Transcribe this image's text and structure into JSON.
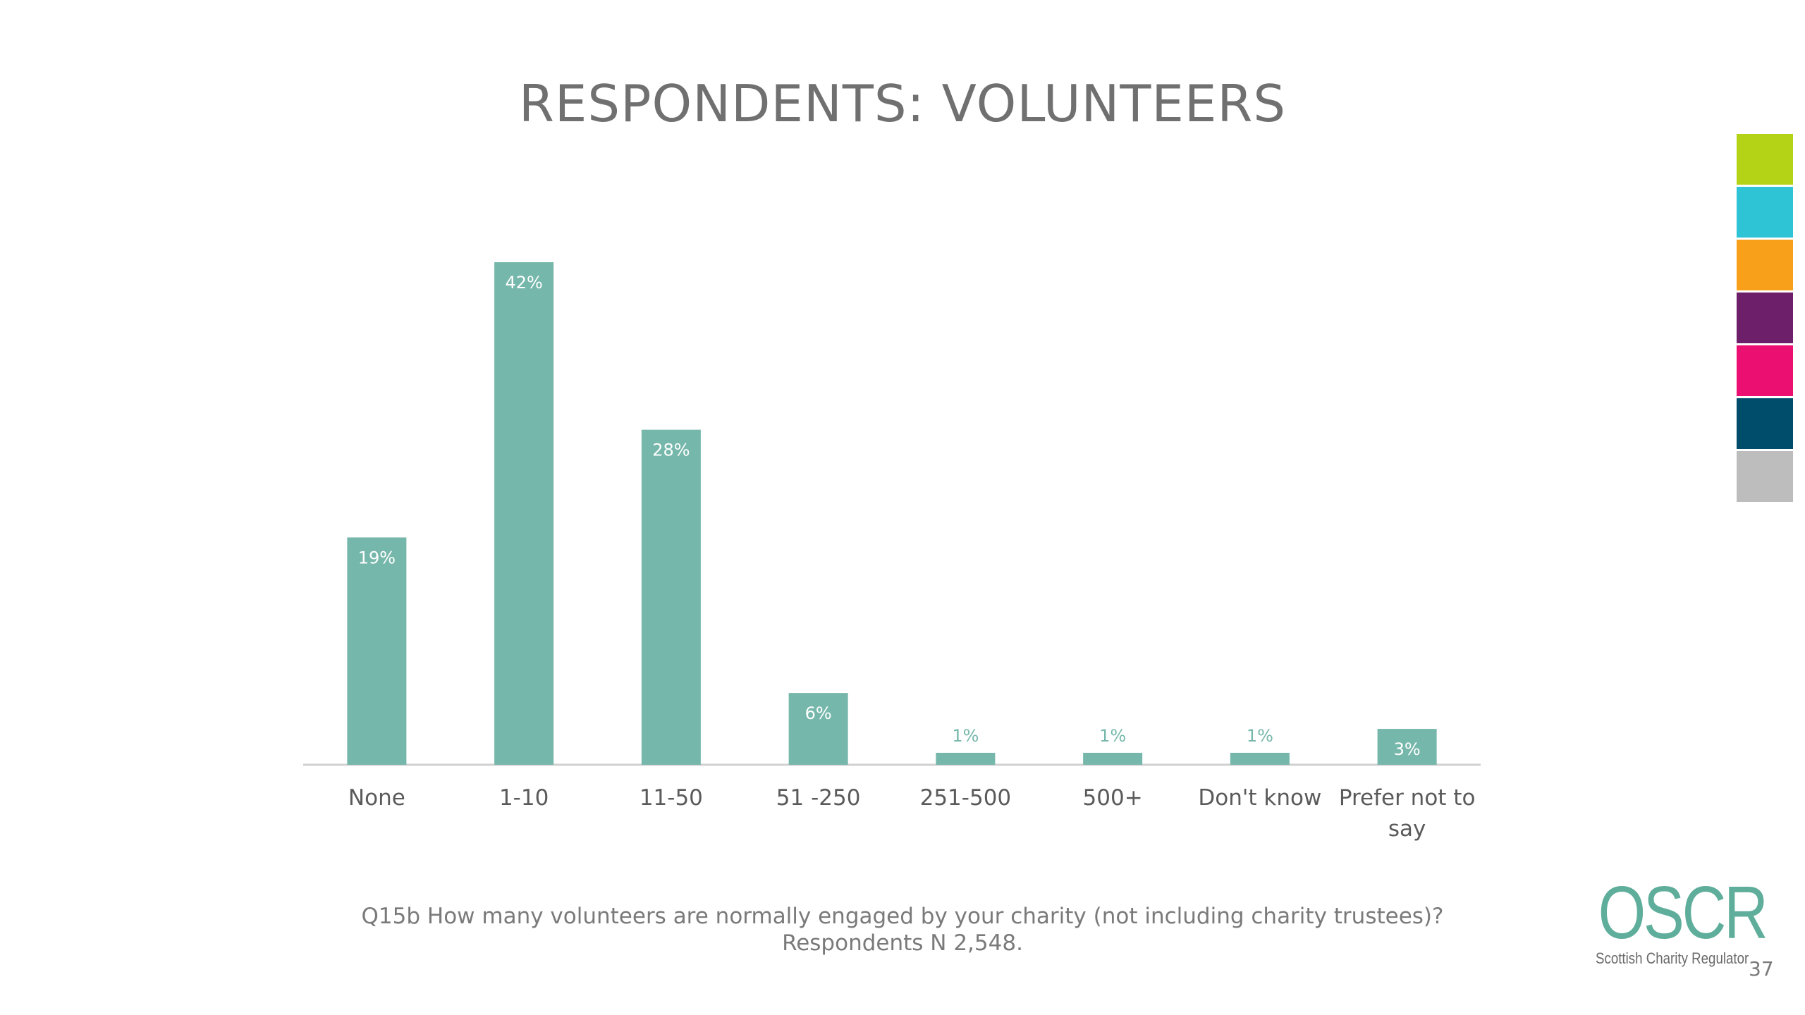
{
  "slide": {
    "title": "RESPONDENTS: VOLUNTEERS",
    "question": "Q15b How many volunteers are normally engaged by your charity (not including charity trustees)?",
    "respondents": "Respondents N 2,548.",
    "page_number": "37"
  },
  "logo": {
    "name": "OSCR",
    "tagline": "Scottish Charity Regulator",
    "color": "#5fae9b"
  },
  "swatches": [
    "#b5d316",
    "#2ec4d6",
    "#f8a01a",
    "#6d1f6a",
    "#ec0f72",
    "#004d6b",
    "#bdbdbd"
  ],
  "chart_data": {
    "type": "bar",
    "title": "",
    "xlabel": "",
    "ylabel": "",
    "ylim": [
      0,
      42
    ],
    "grid": false,
    "bar_color": "#76b7ab",
    "categories": [
      [
        "None"
      ],
      [
        "1-10"
      ],
      [
        "11-50"
      ],
      [
        "51 -250"
      ],
      [
        "251-500"
      ],
      [
        "500+"
      ],
      [
        "Don't know"
      ],
      [
        "Prefer not to",
        "say"
      ]
    ],
    "values": [
      19,
      42,
      28,
      6,
      1,
      1,
      1,
      3
    ],
    "data_labels": [
      "19%",
      "42%",
      "28%",
      "6%",
      "1%",
      "1%",
      "1%",
      "3%"
    ]
  }
}
